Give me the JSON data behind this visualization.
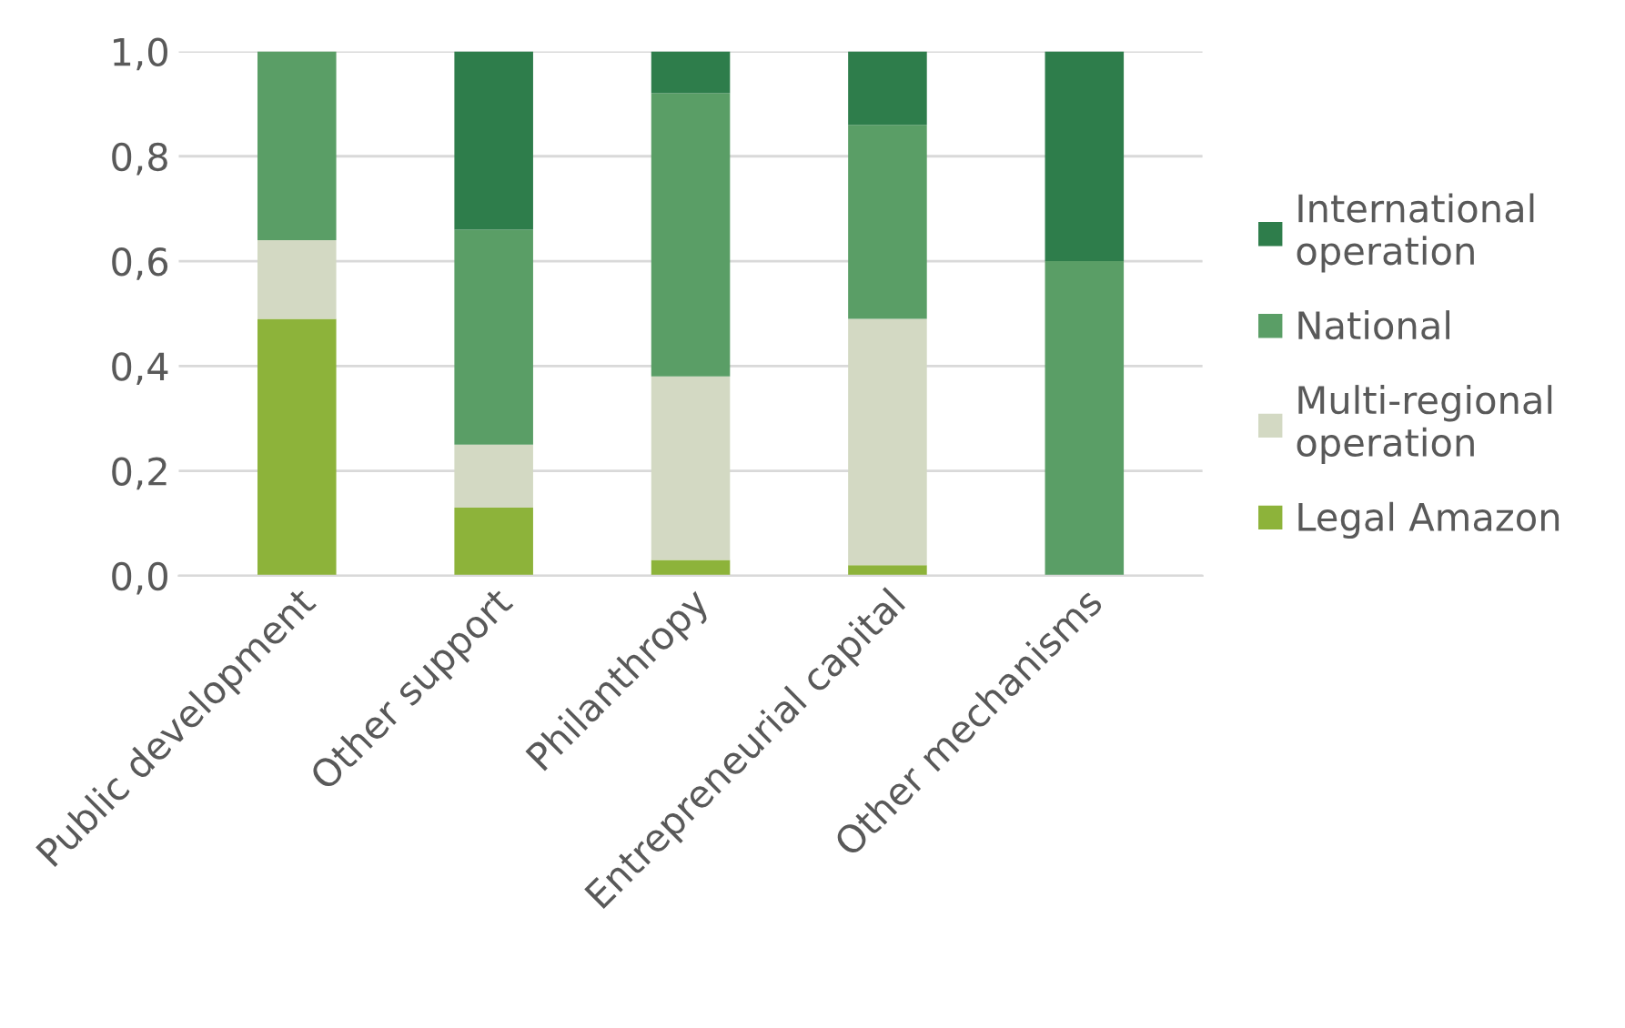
{
  "chart_data": {
    "type": "bar",
    "stacked": true,
    "categories": [
      "Public development",
      "Other support",
      "Philanthropy",
      "Entrepreneurial capital",
      "Other mechanisms"
    ],
    "series": [
      {
        "name": "Legal Amazon",
        "color": "#8db33a",
        "values": [
          0.49,
          0.13,
          0.03,
          0.02,
          0
        ]
      },
      {
        "name": "Multi-regional\noperation",
        "color": "#d3d9c3",
        "values": [
          0.15,
          0.12,
          0.35,
          0.47,
          0
        ]
      },
      {
        "name": "National",
        "color": "#5a9e66",
        "values": [
          0.36,
          0.41,
          0.54,
          0.37,
          0.6
        ]
      },
      {
        "name": "International\noperation",
        "color": "#2e7d4b",
        "values": [
          0,
          0.34,
          0.08,
          0.14,
          0.4
        ]
      }
    ],
    "ylim": [
      0,
      1
    ],
    "yticks": [
      {
        "value": 0,
        "label": "0,0"
      },
      {
        "value": 0.2,
        "label": "0,2"
      },
      {
        "value": 0.4,
        "label": "0,4"
      },
      {
        "value": 0.6,
        "label": "0,6"
      },
      {
        "value": 0.8,
        "label": "0,8"
      },
      {
        "value": 1,
        "label": "1,0"
      }
    ],
    "grid": "y",
    "legend": "right"
  }
}
